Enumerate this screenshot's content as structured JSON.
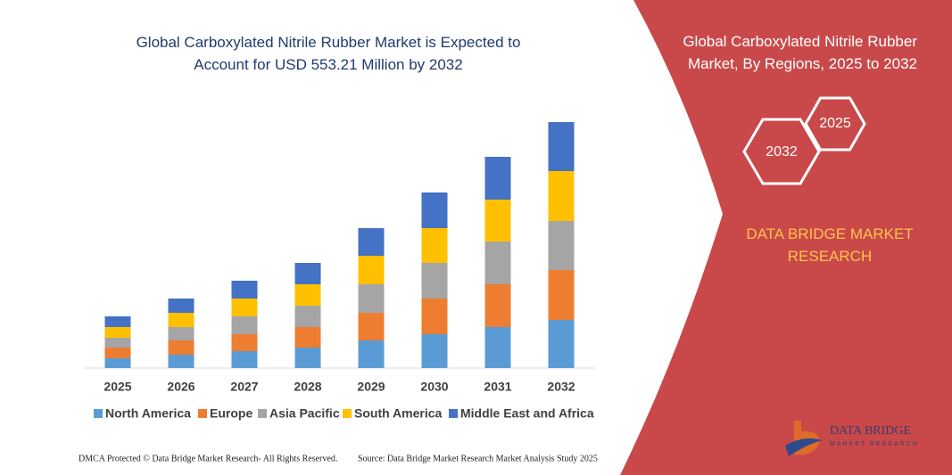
{
  "chart_data": {
    "type": "stacked-bar",
    "title": "Global Carboxylated Nitrile Rubber Market is Expected to Account for USD 553.21 Million by 2032",
    "categories": [
      "2025",
      "2026",
      "2027",
      "2028",
      "2029",
      "2030",
      "2031",
      "2032"
    ],
    "series": [
      {
        "name": "North America",
        "color": "#5b9bd5",
        "values": [
          11,
          15,
          19,
          23,
          31,
          38,
          46,
          54
        ]
      },
      {
        "name": "Europe",
        "color": "#ed7d31",
        "values": [
          12,
          16,
          19,
          23,
          31,
          40,
          48,
          56
        ]
      },
      {
        "name": "Asia Pacific",
        "color": "#a5a5a5",
        "values": [
          11,
          15,
          20,
          24,
          32,
          40,
          48,
          55
        ]
      },
      {
        "name": "South America",
        "color": "#ffc000",
        "values": [
          12,
          16,
          20,
          24,
          32,
          39,
          47,
          56
        ]
      },
      {
        "name": "Middle East and Africa",
        "color": "#4472c4",
        "values": [
          12,
          16,
          20,
          24,
          31,
          40,
          48,
          55
        ]
      }
    ],
    "ylim": [
      0,
      280
    ]
  },
  "panel": {
    "title": "Global Carboxylated Nitrile Rubber Market, By Regions, 2025 to 2032",
    "hexagons": [
      "2025",
      "2032"
    ],
    "brand": "DATA BRIDGE MARKET RESEARCH"
  },
  "logo": {
    "name": "DATA BRIDGE",
    "tagline": "MARKET RESEARCH"
  },
  "footer": {
    "left": "DMCA Protected © Data Bridge Market Research- All Rights Reserved.",
    "right": "Source: Data Bridge Market Research  Market Analysis Study 2025"
  }
}
